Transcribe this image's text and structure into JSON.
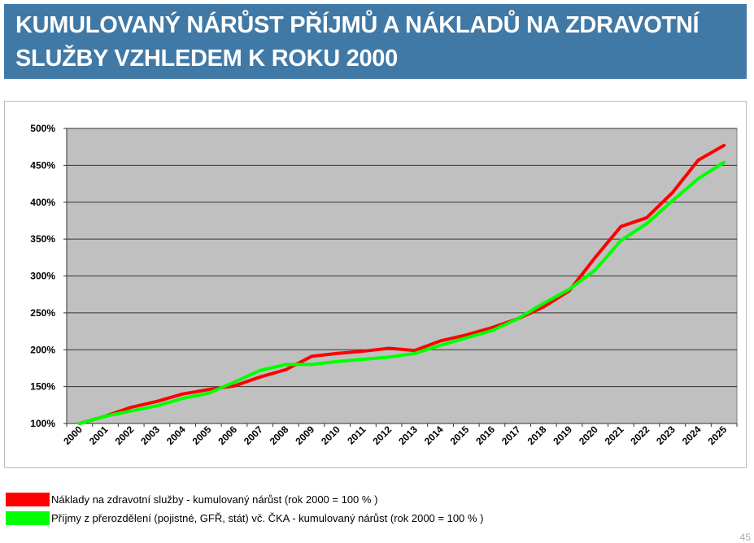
{
  "title": "KUMULOVANÝ NÁRŮST PŘÍJMŮ A NÁKLADŮ NA ZDRAVOTNÍ SLUŽBY VZHLEDEM K ROKU 2000",
  "page_number": "45",
  "chart_data": {
    "type": "line",
    "title": "",
    "xlabel": "",
    "ylabel": "",
    "ylim": [
      100,
      500
    ],
    "yticks": [
      "100%",
      "150%",
      "200%",
      "250%",
      "300%",
      "350%",
      "400%",
      "450%",
      "500%"
    ],
    "ytick_values": [
      100,
      150,
      200,
      250,
      300,
      350,
      400,
      450,
      500
    ],
    "grid": true,
    "legend_placement": "bottom",
    "x": [
      "2000",
      "2001",
      "2002",
      "2003",
      "2004",
      "2005",
      "2006",
      "2007",
      "2008",
      "2009",
      "2010",
      "2011",
      "2012",
      "2013",
      "2014",
      "2015",
      "2016",
      "2017",
      "2018",
      "2019",
      "2020",
      "2021",
      "2022",
      "2023",
      "2024",
      "2025"
    ],
    "series": [
      {
        "name": "Náklady na zdravotní služby - kumulovaný nárůst (rok 2000 = 100 % )",
        "color": "#ff0000",
        "values": [
          100,
          110,
          122,
          130,
          140,
          146,
          151,
          163,
          173,
          191,
          195,
          198,
          202,
          199,
          212,
          220,
          230,
          242,
          258,
          280,
          325,
          367,
          379,
          413,
          457,
          477
        ]
      },
      {
        "name": "Příjmy z přerozdělení (pojistné, GFŘ, stát) vč. ČKA - kumulovaný nárůst (rok 2000 = 100 % )",
        "color": "#00ff00",
        "values": [
          100,
          110,
          117,
          124,
          134,
          141,
          156,
          172,
          180,
          180,
          184,
          187,
          190,
          195,
          206,
          216,
          226,
          242,
          263,
          282,
          308,
          348,
          371,
          402,
          432,
          454
        ]
      }
    ]
  }
}
